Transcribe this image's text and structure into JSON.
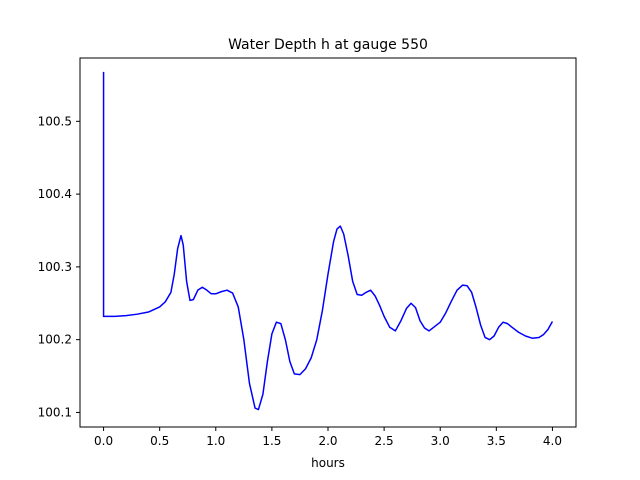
{
  "chart_data": {
    "type": "line",
    "title": "Water Depth h at gauge 550",
    "xlabel": "hours",
    "ylabel": "",
    "xlim": [
      -0.21,
      4.21
    ],
    "ylim": [
      100.08,
      100.587
    ],
    "xticks": [
      0.0,
      0.5,
      1.0,
      1.5,
      2.0,
      2.5,
      3.0,
      3.5,
      4.0
    ],
    "xtick_labels": [
      "0.0",
      "0.5",
      "1.0",
      "1.5",
      "2.0",
      "2.5",
      "3.0",
      "3.5",
      "4.0"
    ],
    "yticks": [
      100.1,
      100.2,
      100.3,
      100.4,
      100.5
    ],
    "ytick_labels": [
      "100.1",
      "100.2",
      "100.3",
      "100.4",
      "100.5"
    ],
    "grid": false,
    "series": [
      {
        "color": "#0000ff",
        "x": [
          0.0,
          0.0,
          0.0,
          0.1,
          0.2,
          0.3,
          0.4,
          0.5,
          0.55,
          0.6,
          0.63,
          0.66,
          0.69,
          0.71,
          0.74,
          0.77,
          0.8,
          0.84,
          0.88,
          0.92,
          0.96,
          1.0,
          1.05,
          1.1,
          1.15,
          1.2,
          1.25,
          1.3,
          1.35,
          1.38,
          1.42,
          1.46,
          1.5,
          1.54,
          1.58,
          1.62,
          1.66,
          1.7,
          1.75,
          1.8,
          1.85,
          1.9,
          1.95,
          2.0,
          2.05,
          2.08,
          2.11,
          2.14,
          2.18,
          2.22,
          2.26,
          2.3,
          2.34,
          2.38,
          2.42,
          2.46,
          2.5,
          2.55,
          2.6,
          2.65,
          2.7,
          2.74,
          2.78,
          2.82,
          2.86,
          2.9,
          2.95,
          3.0,
          3.05,
          3.1,
          3.15,
          3.2,
          3.24,
          3.28,
          3.32,
          3.36,
          3.4,
          3.44,
          3.48,
          3.52,
          3.56,
          3.6,
          3.64,
          3.7,
          3.76,
          3.82,
          3.88,
          3.92,
          3.96,
          4.0
        ],
        "y": [
          100.568,
          100.4,
          100.232,
          100.232,
          100.233,
          100.235,
          100.238,
          100.245,
          100.252,
          100.265,
          100.29,
          100.325,
          100.343,
          100.33,
          100.28,
          100.254,
          100.255,
          100.268,
          100.272,
          100.268,
          100.263,
          100.263,
          100.266,
          100.268,
          100.264,
          100.245,
          100.2,
          100.14,
          100.106,
          100.104,
          100.125,
          100.17,
          100.208,
          100.224,
          100.222,
          100.2,
          100.17,
          100.153,
          100.152,
          100.16,
          100.175,
          100.2,
          100.24,
          100.29,
          100.335,
          100.352,
          100.356,
          100.345,
          100.315,
          100.28,
          100.262,
          100.261,
          100.265,
          100.268,
          100.26,
          100.247,
          100.232,
          100.217,
          100.212,
          100.226,
          100.243,
          100.25,
          100.244,
          100.226,
          100.216,
          100.212,
          100.218,
          100.224,
          100.237,
          100.253,
          100.268,
          100.275,
          100.274,
          100.265,
          100.244,
          100.22,
          100.203,
          100.2,
          100.205,
          100.217,
          100.224,
          100.222,
          100.217,
          100.21,
          100.205,
          100.202,
          100.203,
          100.207,
          100.214,
          100.225
        ]
      }
    ]
  }
}
